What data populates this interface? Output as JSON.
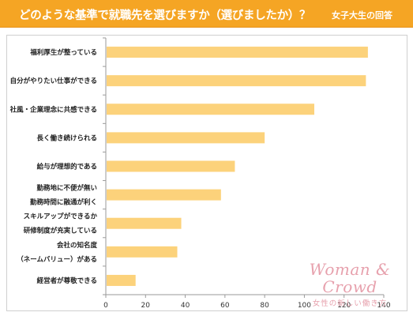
{
  "header": {
    "title": "どのような基準で就職先を選びますか（選びましたか）？",
    "subtitle": "女子大生の回答"
  },
  "logo": {
    "name": "Woman & Crowd",
    "tagline": "女性の新しい働き方"
  },
  "chart_data": {
    "type": "bar",
    "orientation": "horizontal",
    "categories": [
      [
        "福利厚生が整っている"
      ],
      [
        "自分がやりたい仕事ができる"
      ],
      [
        "社風・企業理念に共感できる"
      ],
      [
        "長く働き続けられる"
      ],
      [
        "給与が理想的である"
      ],
      [
        "勤務地に不便が無い",
        "勤務時間に融通が利く"
      ],
      [
        "スキルアップができるか",
        "研修制度が充実している"
      ],
      [
        "会社の知名度",
        "（ネームバリュー）がある"
      ],
      [
        "経営者が尊敬できる"
      ]
    ],
    "values": [
      132,
      131,
      105,
      80,
      65,
      58,
      38,
      36,
      15
    ],
    "xlim": [
      0,
      140
    ],
    "xticks": [
      0,
      20,
      40,
      60,
      80,
      100,
      120,
      140
    ],
    "grid": false,
    "colors": {
      "bar": "#fcd27b",
      "header": "#f5a524",
      "axis": "#9a9a9a"
    }
  }
}
